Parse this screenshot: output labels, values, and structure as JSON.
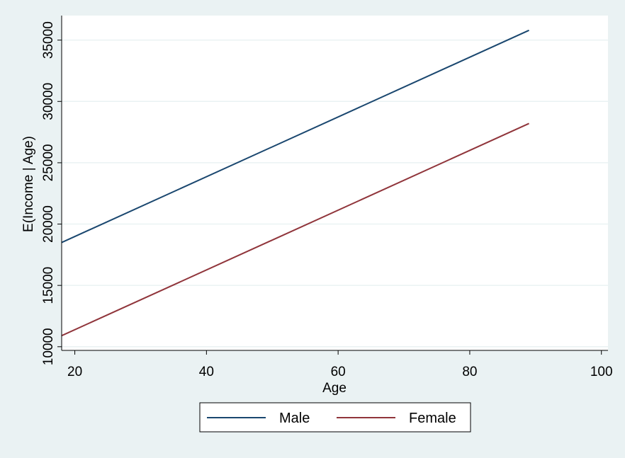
{
  "chart_data": {
    "type": "line",
    "xlabel": "Age",
    "ylabel": "E(Income | Age)",
    "xlim": [
      18,
      101
    ],
    "ylim": [
      9700,
      37000
    ],
    "xticks": [
      20,
      40,
      60,
      80,
      100
    ],
    "yticks": [
      10000,
      15000,
      20000,
      25000,
      30000,
      35000
    ],
    "grid": true,
    "legend_position": "bottom",
    "series": [
      {
        "name": "Male",
        "color": "#1a476f",
        "x": [
          18,
          89
        ],
        "y": [
          18500,
          35800
        ]
      },
      {
        "name": "Female",
        "color": "#90353b",
        "x": [
          18,
          89
        ],
        "y": [
          10900,
          28200
        ]
      }
    ]
  }
}
